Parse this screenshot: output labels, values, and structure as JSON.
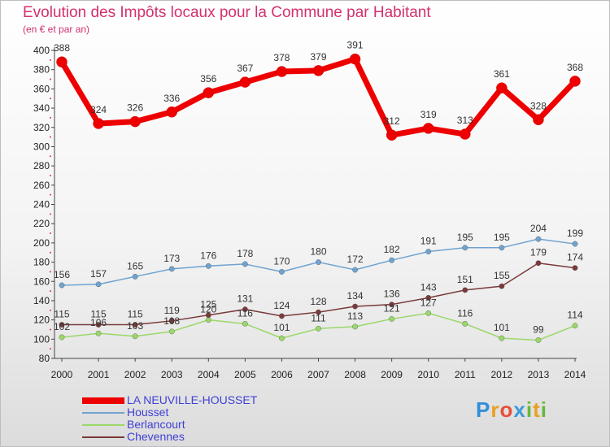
{
  "title": "Evolution des Impôts locaux pour la Commune par Habitant",
  "subtitle": "(en € et par an)",
  "logo": {
    "p": "P",
    "r": "r",
    "o": "o",
    "x": "x",
    "i": "i",
    "t": "t",
    "i2": "i"
  },
  "chart_data": {
    "type": "line",
    "x": [
      "2000",
      "2001",
      "2002",
      "2003",
      "2004",
      "2005",
      "2006",
      "2007",
      "2008",
      "2009",
      "2010",
      "2011",
      "2012",
      "2013",
      "2014"
    ],
    "ylim": [
      80,
      400
    ],
    "yticks": [
      80,
      100,
      120,
      140,
      160,
      180,
      200,
      220,
      240,
      260,
      280,
      300,
      320,
      340,
      360,
      380,
      400
    ],
    "grid": false,
    "legend_position": "bottom-left",
    "series": [
      {
        "name": "LA NEUVILLE-HOUSSET",
        "color": "#ee0000",
        "width": 7,
        "values": [
          388,
          324,
          326,
          336,
          356,
          367,
          378,
          379,
          391,
          312,
          319,
          313,
          361,
          328,
          368
        ]
      },
      {
        "name": "Housset",
        "color": "#6fa3d0",
        "width": 1.5,
        "values": [
          156,
          157,
          165,
          173,
          176,
          178,
          170,
          180,
          172,
          182,
          191,
          195,
          195,
          204,
          199
        ]
      },
      {
        "name": "Berlancourt",
        "color": "#9ad868",
        "width": 1.5,
        "values": [
          102,
          106,
          103,
          108,
          120,
          116,
          101,
          111,
          113,
          121,
          127,
          116,
          101,
          99,
          114
        ]
      },
      {
        "name": "Chevennes",
        "color": "#7a3a3a",
        "width": 1.5,
        "values": [
          115,
          115,
          115,
          119,
          125,
          131,
          124,
          128,
          134,
          136,
          143,
          151,
          155,
          179,
          174
        ]
      }
    ]
  }
}
